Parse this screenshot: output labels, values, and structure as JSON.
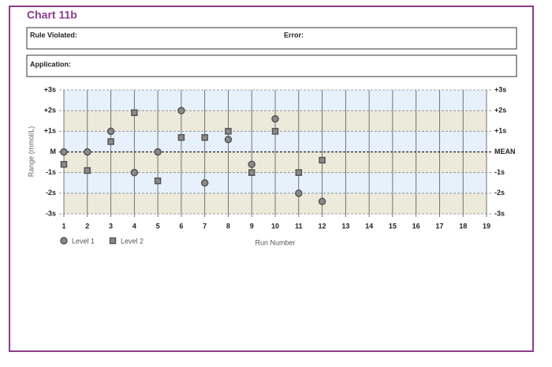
{
  "header": {
    "title": "Chart 11b"
  },
  "form": {
    "rule_violated": "Rule Violated:",
    "error": "Error:",
    "application": "Application:"
  },
  "chart_data": {
    "type": "scatter",
    "xlabel": "Run Number",
    "ylabel": "Range (mmol/L)",
    "x": [
      1,
      2,
      3,
      4,
      5,
      6,
      7,
      8,
      9,
      10,
      11,
      12
    ],
    "series": [
      {
        "name": "Level 1",
        "marker": "circle",
        "color": "#8a8a8a",
        "values": [
          0,
          0,
          1,
          -1,
          0,
          2,
          -1.5,
          0.6,
          -0.6,
          1.6,
          -2,
          -2.4
        ]
      },
      {
        "name": "Level 2",
        "marker": "square",
        "color": "#8a8a8a",
        "values": [
          -0.6,
          -0.9,
          0.5,
          1.9,
          -1.4,
          0.7,
          0.7,
          1,
          -1,
          1,
          -1,
          -0.4
        ]
      }
    ],
    "xlim": [
      1,
      19
    ],
    "xticks": [
      1,
      2,
      3,
      4,
      5,
      6,
      7,
      8,
      9,
      10,
      11,
      12,
      13,
      14,
      15,
      16,
      17,
      18,
      19
    ],
    "ylim": [
      -3,
      3
    ],
    "yticks": [
      {
        "value": 3,
        "label": "+3s"
      },
      {
        "value": 2,
        "label": "+2s"
      },
      {
        "value": 1,
        "label": "+1s"
      },
      {
        "value": 0,
        "label": "M"
      },
      {
        "value": -1,
        "label": "-1s"
      },
      {
        "value": -2,
        "label": "-2s"
      },
      {
        "value": -3,
        "label": "-3s"
      }
    ],
    "y2lim": [
      -3,
      3
    ],
    "y2ticks": [
      {
        "value": 3,
        "label": "+3s"
      },
      {
        "value": 2,
        "label": "+2s"
      },
      {
        "value": 1,
        "label": "+1s"
      },
      {
        "value": 0,
        "label": "MEAN"
      },
      {
        "value": -1,
        "label": "-1s"
      },
      {
        "value": -2,
        "label": "-2s"
      },
      {
        "value": -3,
        "label": "-3s"
      }
    ],
    "grid": true,
    "legend": "bottom-left"
  }
}
